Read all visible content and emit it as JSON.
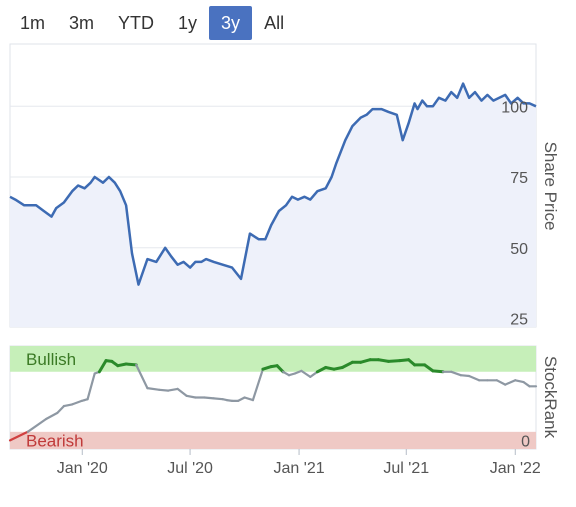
{
  "range_selector": {
    "buttons": [
      "1m",
      "3m",
      "YTD",
      "1y",
      "3y",
      "All"
    ],
    "active": "3y"
  },
  "colors": {
    "price_line": "#3d6bb3",
    "price_fill": "#eef1fa",
    "bullish_band": "#c6efb9",
    "bearish_band": "#efc9c5",
    "bullish_text": "#3b7a25",
    "bearish_text": "#c03a3a",
    "rank_neutral": "#8e98a3",
    "rank_bullish": "#2a8a2a",
    "rank_bearish": "#d04040",
    "active_button": "#4a72c0"
  },
  "chart_data": [
    {
      "type": "line",
      "ylabel": "Share Price",
      "y_ticks": [
        "25",
        "50",
        "75",
        "100"
      ],
      "ylim": [
        22,
        122
      ],
      "xlim": [
        "2019-09-01",
        "2022-02-05"
      ],
      "x_ticks": [
        "Jan '20",
        "Jul '20",
        "Jan '21",
        "Jul '21",
        "Jan '22"
      ],
      "grid": true,
      "series": [
        {
          "x": [
            "2019-09-01",
            "2019-09-10",
            "2019-09-25",
            "2019-10-15",
            "2019-10-28",
            "2019-11-10",
            "2019-11-18",
            "2019-12-01",
            "2019-12-15",
            "2019-12-25",
            "2020-01-05",
            "2020-01-15",
            "2020-01-22",
            "2020-02-05",
            "2020-02-15",
            "2020-02-25",
            "2020-03-05",
            "2020-03-15",
            "2020-03-25",
            "2020-04-05",
            "2020-04-20",
            "2020-05-05",
            "2020-05-20",
            "2020-05-30",
            "2020-06-10",
            "2020-06-20",
            "2020-07-01",
            "2020-07-10",
            "2020-07-20",
            "2020-07-28",
            "2020-08-10",
            "2020-08-25",
            "2020-09-10",
            "2020-09-25",
            "2020-10-10",
            "2020-10-25",
            "2020-11-05",
            "2020-11-15",
            "2020-11-28",
            "2020-12-10",
            "2020-12-20",
            "2020-12-30",
            "2021-01-10",
            "2021-01-20",
            "2021-02-01",
            "2021-02-15",
            "2021-02-25",
            "2021-03-05",
            "2021-03-20",
            "2021-04-01",
            "2021-04-15",
            "2021-04-25",
            "2021-05-05",
            "2021-05-20",
            "2021-06-01",
            "2021-06-15",
            "2021-06-25",
            "2021-07-05",
            "2021-07-15",
            "2021-07-20",
            "2021-07-28",
            "2021-08-05",
            "2021-08-15",
            "2021-08-25",
            "2021-09-05",
            "2021-09-15",
            "2021-09-25",
            "2021-10-05",
            "2021-10-15",
            "2021-10-25",
            "2021-11-05",
            "2021-11-15",
            "2021-11-25",
            "2021-12-05",
            "2021-12-15",
            "2021-12-25",
            "2022-01-05",
            "2022-01-15",
            "2022-01-25",
            "2022-02-05"
          ],
          "values": [
            68,
            67,
            65,
            65,
            63,
            61,
            64,
            66,
            70,
            72,
            71,
            73,
            75,
            73,
            75,
            73,
            70,
            65,
            48,
            37,
            46,
            45,
            50,
            47,
            44,
            45,
            43,
            45,
            45,
            46,
            45,
            44,
            43,
            39,
            55,
            53,
            53,
            58,
            63,
            65,
            68,
            67,
            68,
            67,
            70,
            71,
            75,
            80,
            88,
            93,
            96,
            97,
            99,
            99,
            98,
            97,
            88,
            94,
            101,
            99,
            102,
            100,
            100,
            103,
            102,
            105,
            103,
            108,
            103,
            105,
            102,
            104,
            102,
            103,
            104,
            101,
            103,
            101,
            101,
            100
          ]
        }
      ]
    },
    {
      "type": "line",
      "ylabel": "StockRank",
      "y_ticks": [
        "0"
      ],
      "ylim": [
        -10,
        110
      ],
      "xlim": [
        "2019-09-01",
        "2022-02-05"
      ],
      "bands": [
        {
          "label": "Bullish",
          "from": 80,
          "to": 110
        },
        {
          "label": "Bearish",
          "from": -10,
          "to": 10
        }
      ],
      "series": [
        {
          "x": [
            "2019-09-01",
            "2019-10-01",
            "2019-11-01",
            "2019-11-20",
            "2019-12-01",
            "2019-12-15",
            "2019-12-31",
            "2020-01-05",
            "2020-01-10",
            "2020-01-22",
            "2020-01-30",
            "2020-02-10",
            "2020-02-20",
            "2020-03-01",
            "2020-03-15",
            "2020-04-01",
            "2020-04-20",
            "2020-05-10",
            "2020-05-25",
            "2020-06-10",
            "2020-06-25",
            "2020-07-10",
            "2020-07-25",
            "2020-08-10",
            "2020-08-25",
            "2020-09-01",
            "2020-09-10",
            "2020-09-20",
            "2020-10-01",
            "2020-10-15",
            "2020-11-01",
            "2020-11-15",
            "2020-11-25",
            "2020-12-05",
            "2020-12-15",
            "2020-12-25",
            "2021-01-05",
            "2021-01-20",
            "2021-02-01",
            "2021-02-15",
            "2021-03-01",
            "2021-03-15",
            "2021-04-01",
            "2021-04-15",
            "2021-05-01",
            "2021-05-15",
            "2021-06-01",
            "2021-06-20",
            "2021-07-05",
            "2021-07-15",
            "2021-08-01",
            "2021-08-15",
            "2021-09-01",
            "2021-09-15",
            "2021-10-01",
            "2021-10-15",
            "2021-11-01",
            "2021-11-15",
            "2021-12-01",
            "2021-12-15",
            "2022-01-01",
            "2022-01-15",
            "2022-01-25",
            "2022-02-05"
          ],
          "values": [
            0,
            10,
            25,
            32,
            40,
            42,
            46,
            47,
            48,
            78,
            80,
            93,
            92,
            87,
            89,
            88,
            61,
            59,
            58,
            60,
            52,
            50,
            50,
            49,
            48,
            47,
            46,
            46,
            50,
            47,
            83,
            86,
            87,
            80,
            76,
            78,
            81,
            74,
            80,
            85,
            83,
            85,
            91,
            91,
            94,
            94,
            92,
            93,
            94,
            88,
            88,
            81,
            80,
            80,
            76,
            75,
            70,
            70,
            70,
            65,
            70,
            68,
            63,
            63
          ],
          "zones": [
            {
              "upto": 10,
              "color": "bearish"
            },
            {
              "upto": 80,
              "color": "neutral"
            },
            {
              "upto": 110,
              "color": "bullish"
            }
          ]
        }
      ]
    }
  ]
}
